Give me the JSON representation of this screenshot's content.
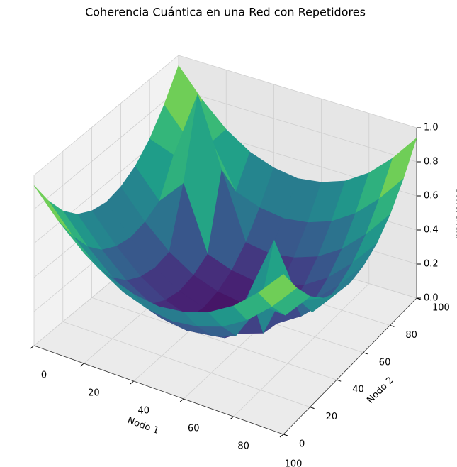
{
  "chart_data": {
    "type": "surface",
    "title": "Coherencia Cuántica en una Red con Repetidores",
    "x_label": "Nodo 1",
    "y_label": "Nodo 2",
    "z_label": "Coherencia",
    "x": [
      0,
      10,
      20,
      30,
      40,
      50,
      60,
      70,
      80,
      90,
      100
    ],
    "y": [
      0,
      10,
      20,
      30,
      40,
      50,
      60,
      70,
      80,
      90,
      100
    ],
    "z": [
      [
        0.94,
        0.78,
        0.65,
        0.56,
        0.51,
        0.49,
        0.51,
        0.56,
        0.65,
        0.78,
        0.94
      ],
      [
        0.78,
        0.62,
        0.49,
        0.4,
        0.35,
        0.33,
        0.35,
        0.4,
        0.49,
        0.62,
        0.78
      ],
      [
        0.65,
        0.49,
        0.36,
        0.27,
        0.22,
        0.2,
        0.22,
        0.27,
        0.5,
        0.49,
        0.65
      ],
      [
        0.56,
        0.4,
        0.27,
        0.18,
        0.13,
        0.11,
        0.13,
        0.45,
        0.8,
        0.5,
        0.56
      ],
      [
        0.51,
        0.35,
        0.22,
        0.13,
        0.08,
        0.06,
        0.08,
        0.13,
        0.45,
        0.35,
        0.51
      ],
      [
        0.49,
        0.33,
        0.2,
        0.11,
        0.06,
        0.04,
        0.06,
        0.11,
        0.2,
        0.33,
        0.49
      ],
      [
        0.51,
        0.35,
        0.22,
        0.13,
        0.08,
        0.06,
        0.08,
        0.13,
        0.22,
        0.35,
        0.51
      ],
      [
        0.56,
        0.4,
        0.55,
        0.18,
        0.13,
        0.11,
        0.13,
        0.18,
        0.27,
        0.4,
        0.56
      ],
      [
        0.65,
        0.6,
        1.0,
        0.6,
        0.22,
        0.2,
        0.22,
        0.27,
        0.36,
        0.49,
        0.65
      ],
      [
        0.78,
        0.62,
        0.65,
        0.4,
        0.35,
        0.33,
        0.35,
        0.4,
        0.49,
        0.62,
        0.78
      ],
      [
        0.94,
        0.78,
        0.65,
        0.56,
        0.51,
        0.49,
        0.51,
        0.56,
        0.65,
        0.78,
        0.94
      ]
    ],
    "colormap": "viridis",
    "xlim": [
      0,
      100
    ],
    "ylim": [
      0,
      100
    ],
    "zlim": [
      0,
      1
    ],
    "xticks": [
      0,
      20,
      40,
      60,
      80,
      100
    ],
    "yticks": [
      0,
      20,
      40,
      60,
      80,
      100
    ],
    "zticks": [
      {
        "value": 0,
        "label": "0.0"
      },
      {
        "value": 0.2,
        "label": "0.2"
      },
      {
        "value": 0.4,
        "label": "0.4"
      },
      {
        "value": 0.6,
        "label": "0.6"
      },
      {
        "value": 0.8,
        "label": "0.8"
      },
      {
        "value": 1,
        "label": "1.0"
      }
    ],
    "grid": true
  }
}
